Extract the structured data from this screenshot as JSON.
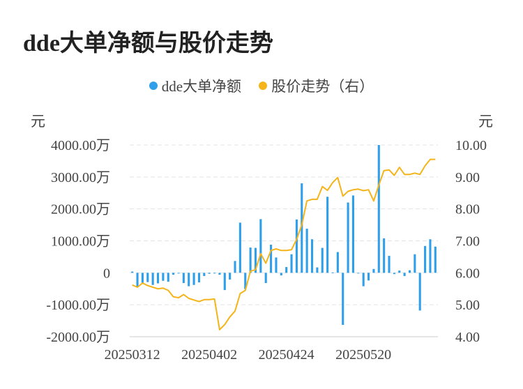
{
  "title": "dde大单净额与股价走势",
  "legend": [
    {
      "label": "dde大单净额",
      "color": "#2f9fea"
    },
    {
      "label": "股价走势（右）",
      "color": "#f4b41a"
    }
  ],
  "units": {
    "left": "元",
    "right": "元"
  },
  "chart_data": {
    "type": "bar",
    "x_tick_labels": [
      "20250312",
      "20250402",
      "20250424",
      "20250520"
    ],
    "x_tick_index": [
      0,
      15,
      30,
      45
    ],
    "y_left": {
      "ticks": [
        4000,
        3000,
        2000,
        1000,
        0,
        -1000,
        -2000
      ],
      "tick_labels": [
        "4000.00万",
        "3000.00万",
        "2000.00万",
        "1000.00万",
        "0",
        "-1000.00万",
        "-2000.00万"
      ],
      "range": [
        -2000,
        4000
      ]
    },
    "y_right": {
      "ticks": [
        10,
        9,
        8,
        7,
        6,
        5,
        4
      ],
      "tick_labels": [
        "10.00",
        "9.00",
        "8.00",
        "7.00",
        "6.00",
        "5.00",
        "4.00"
      ],
      "range": [
        4,
        10
      ]
    },
    "grid": true,
    "legend_position": "top-center",
    "series": [
      {
        "name": "dde大单净额",
        "type": "bar",
        "axis": "left",
        "color": "#2f9fea",
        "values": [
          40,
          -430,
          -330,
          -290,
          -380,
          -330,
          -250,
          -280,
          -60,
          -20,
          -320,
          -420,
          -380,
          -300,
          -100,
          -30,
          -20,
          -60,
          -540,
          -210,
          370,
          1570,
          -510,
          790,
          780,
          1680,
          -320,
          880,
          480,
          -80,
          180,
          580,
          1670,
          2800,
          1380,
          1050,
          170,
          780,
          2380,
          10,
          650,
          -1630,
          2200,
          2420,
          -20,
          -420,
          -240,
          120,
          4000,
          1080,
          530,
          -40,
          70,
          -100,
          80,
          580,
          -1180,
          840,
          1050,
          820
        ]
      },
      {
        "name": "股价走势（右）",
        "type": "line",
        "axis": "right",
        "color": "#f4b41a",
        "values": [
          5.62,
          5.55,
          5.68,
          5.6,
          5.55,
          5.5,
          5.52,
          5.45,
          5.25,
          5.22,
          5.32,
          5.2,
          5.15,
          5.1,
          5.16,
          5.16,
          5.18,
          4.22,
          4.38,
          4.62,
          4.8,
          5.35,
          5.45,
          6.05,
          6.1,
          6.6,
          6.3,
          6.7,
          6.75,
          6.7,
          6.7,
          6.72,
          7.05,
          7.5,
          8.25,
          8.3,
          8.3,
          8.7,
          8.58,
          8.82,
          8.98,
          8.4,
          8.55,
          8.6,
          8.62,
          8.57,
          8.6,
          8.25,
          8.75,
          9.2,
          9.22,
          9.05,
          9.3,
          9.08,
          9.08,
          9.12,
          9.08,
          9.35,
          9.55,
          9.55
        ]
      }
    ]
  }
}
